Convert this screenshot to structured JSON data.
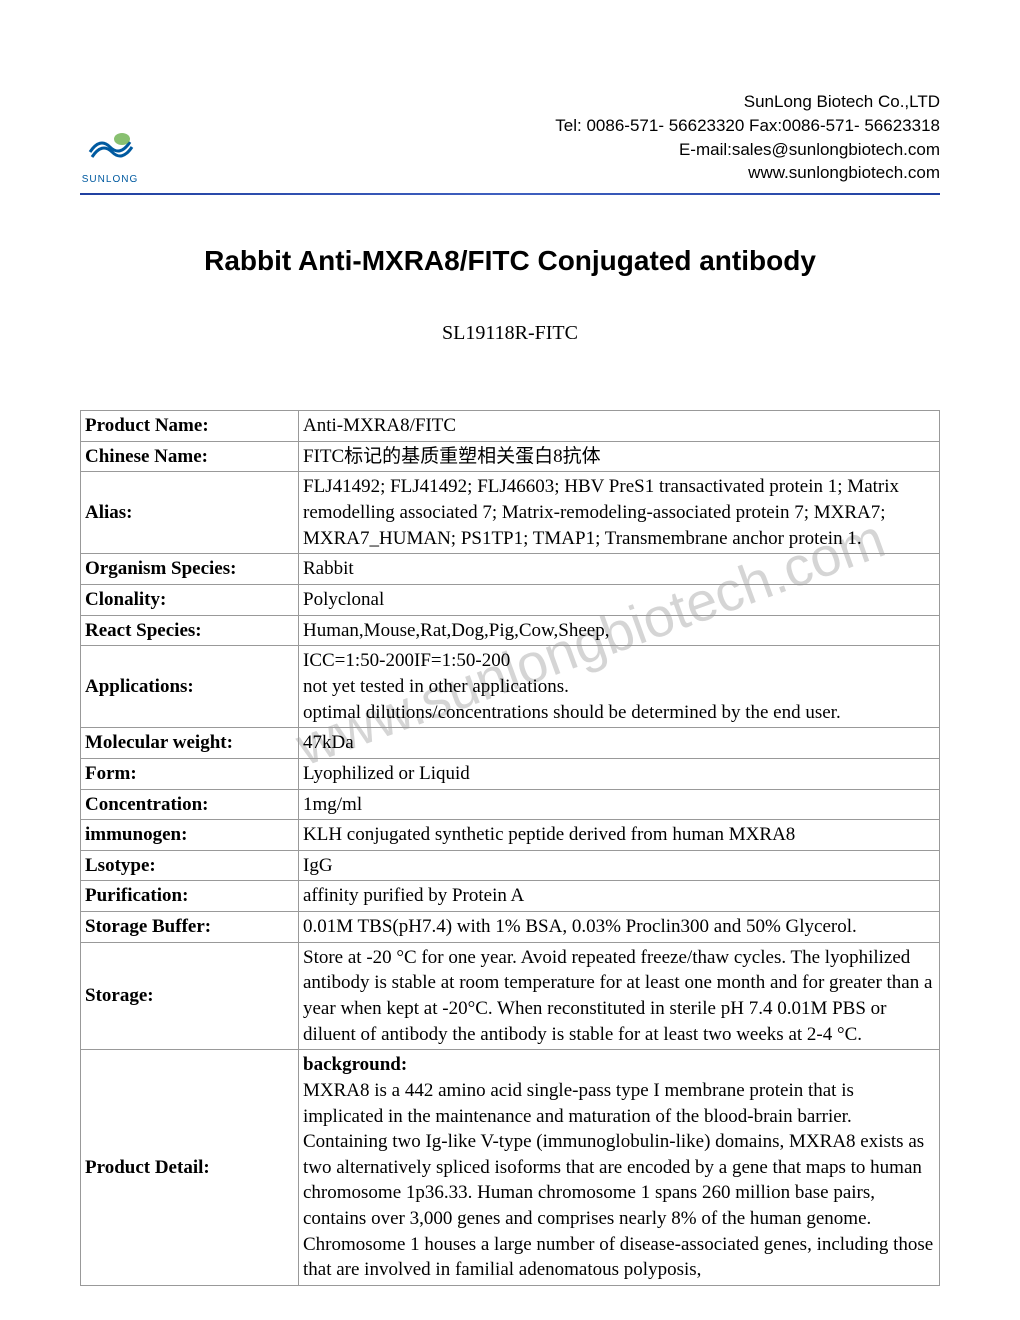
{
  "header": {
    "logo_text": "SUNLONG",
    "company_name": "SunLong Biotech Co.,LTD",
    "tel": "Tel: 0086-571- 56623320 Fax:0086-571- 56623318",
    "email": "E-mail:sales@sunlongbiotech.com",
    "website": "www.sunlongbiotech.com"
  },
  "title": "Rabbit Anti-MXRA8/FITC Conjugated antibody",
  "catalog_number": "SL19118R-FITC",
  "watermark": "www.sunlongbiotech.com",
  "specs": [
    {
      "label": "Product Name:",
      "value": "Anti-MXRA8/FITC"
    },
    {
      "label": "Chinese Name:",
      "value": "FITC标记的基质重塑相关蛋白8抗体"
    },
    {
      "label": "Alias:",
      "value": "FLJ41492; FLJ41492; FLJ46603; HBV PreS1 transactivated protein 1; Matrix remodelling associated 7; Matrix-remodeling-associated protein 7; MXRA7; MXRA7_HUMAN; PS1TP1; TMAP1; Transmembrane anchor protein 1."
    },
    {
      "label": "Organism Species:",
      "value": "Rabbit"
    },
    {
      "label": "Clonality:",
      "value": "Polyclonal"
    },
    {
      "label": "React Species:",
      "value": "Human,Mouse,Rat,Dog,Pig,Cow,Sheep,"
    },
    {
      "label": "Applications:",
      "value": "ICC=1:50-200IF=1:50-200\nnot yet tested in other applications.\noptimal dilutions/concentrations should be determined by the end user."
    },
    {
      "label": "Molecular weight:",
      "value": "47kDa"
    },
    {
      "label": "Form:",
      "value": "Lyophilized or Liquid"
    },
    {
      "label": "Concentration:",
      "value": "1mg/ml"
    },
    {
      "label": "immunogen:",
      "value": "KLH conjugated synthetic peptide derived from human MXRA8"
    },
    {
      "label": "Lsotype:",
      "value": "IgG"
    },
    {
      "label": "Purification:",
      "value": "affinity purified by Protein A"
    },
    {
      "label": "Storage Buffer:",
      "value": "0.01M TBS(pH7.4) with 1% BSA, 0.03% Proclin300 and 50% Glycerol."
    },
    {
      "label": "Storage:",
      "value": "Store at -20 °C for one year. Avoid repeated freeze/thaw cycles. The lyophilized antibody is stable at room temperature for at least one month and for greater than a year when kept at -20°C. When reconstituted in sterile pH 7.4 0.01M PBS or diluent of antibody the antibody is stable for at least two weeks at 2-4 °C."
    },
    {
      "label": "Product Detail:",
      "value": "background:\nMXRA8 is a 442 amino acid single-pass type I membrane protein that is implicated in the maintenance and maturation of the blood-brain barrier. Containing two Ig-like V-type (immunoglobulin-like) domains, MXRA8 exists as two alternatively spliced isoforms that are encoded by a gene that maps to human chromosome 1p36.33. Human chromosome 1 spans 260 million base pairs, contains over 3,000 genes and comprises nearly 8% of the human genome. Chromosome 1 houses a large number of disease-associated genes, including those that are involved in familial adenomatous polyposis,"
    }
  ],
  "colors": {
    "text": "#000000",
    "border": "#999999",
    "divider": "#2040a0",
    "watermark": "#d5d5d5",
    "logo_blue": "#005aa0",
    "logo_green": "#6ab04c"
  }
}
